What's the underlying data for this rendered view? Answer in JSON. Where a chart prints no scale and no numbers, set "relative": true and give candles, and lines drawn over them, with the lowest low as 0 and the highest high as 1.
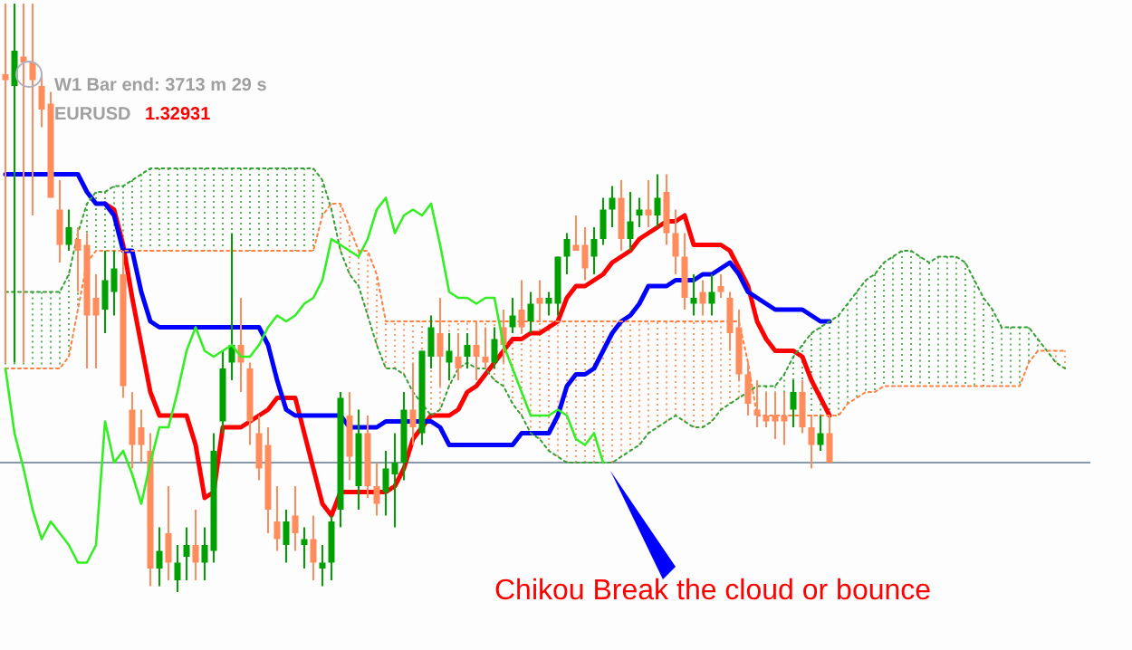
{
  "chart_data": {
    "type": "candlestick",
    "relative": true,
    "categories": [
      null,
      null,
      null,
      null,
      null,
      null,
      null,
      null,
      null,
      null,
      null,
      null,
      null,
      null,
      null,
      null,
      null,
      null,
      null,
      null,
      null,
      null,
      null,
      null,
      null,
      null,
      null,
      null,
      null,
      null,
      null,
      null,
      null,
      null,
      null,
      null,
      null,
      null,
      null,
      null,
      null,
      null,
      null,
      null,
      null,
      null,
      null,
      null,
      null,
      null,
      null,
      null,
      null,
      null,
      null,
      null,
      null,
      null,
      null,
      null,
      null,
      null,
      null,
      null,
      null,
      null,
      null,
      null,
      null,
      null,
      null,
      null,
      null,
      null,
      null,
      null,
      null,
      null,
      null,
      null,
      null,
      null,
      null,
      null,
      null,
      null,
      null,
      null,
      null,
      null,
      null,
      null,
      null,
      null,
      null,
      null,
      null,
      null,
      null,
      null,
      null,
      null,
      null,
      null,
      null,
      null,
      null,
      null,
      null,
      null,
      null,
      null,
      null,
      null,
      null,
      null,
      null,
      null
    ],
    "colors": [
      "#ff8c5a",
      "#00a000",
      "#ff8c5a",
      "#ff8c5a",
      "#ff8c5a",
      "#ff8c5a",
      "#ff8c5a",
      "#00a000",
      "#ff8c5a",
      "#ff8c5a",
      "#ff8c5a",
      "#00a000",
      "#00a000",
      "#ff8c5a",
      "#ff8c5a",
      "#ff8c5a",
      "#ff8c5a",
      "#00a000",
      "#ff8c5a",
      "#00a000",
      "#00a000",
      "#ff8c5a",
      "#00a000",
      "#00a000",
      "#00a000",
      "#00a000",
      "#ff8c5a",
      "#ff8c5a",
      "#ff8c5a",
      "#ff8c5a",
      "#ff8c5a",
      "#00a000",
      "#ff8c5a",
      "#00a000",
      "#ff8c5a",
      "#00a000",
      "#00a000",
      "#00a000",
      "#ff8c5a",
      "#00a000",
      "#ff8c5a",
      "#ff8c5a",
      "#00a000",
      "#00a000",
      "#00a000",
      "#ff8c5a",
      "#00a000",
      "#00a000",
      "#ff8c5a",
      "#00a000",
      "#ff8c5a",
      "#00a000",
      "#ff8c5a",
      "#ff8c5a",
      "#00a000",
      "#ff8c5a",
      "#00a000",
      "#ff8c5a",
      "#00a000",
      "#ff8c5a",
      "#00a000",
      "#00a000",
      "#00a000",
      "#ff8c5a",
      "#ff8c5a",
      "#00a000",
      "#00a000",
      "#00a000",
      "#ff8c5a",
      "#00a000",
      "#00a000",
      "#ff8c5a",
      "#00a000",
      "#ff8c5a",
      "#ff8c5a",
      "#ff8c5a",
      "#00a000",
      "#ff8c5a",
      "#00a000",
      "#ff8c5a",
      "#ff8c5a",
      "#ff8c5a",
      "#ff8c5a",
      "#ff8c5a",
      "#ff8c5a",
      "#ff8c5a",
      "#ff8c5a",
      "#00a000",
      "#ff8c5a",
      "#ff8c5a",
      "#00a000",
      "#ff8c5a",
      null,
      null,
      null,
      null,
      null,
      null,
      null,
      null,
      null,
      null,
      null,
      null,
      null,
      null,
      null,
      null,
      null,
      null,
      null,
      null,
      null,
      null,
      null,
      null,
      null,
      null
    ],
    "ohlc": [
      [
        0.88,
        1.0,
        0.39,
        0.87
      ],
      [
        0.86,
        1.0,
        0.39,
        0.92
      ],
      [
        0.91,
        1.0,
        0.39,
        0.9
      ],
      [
        0.9,
        1.0,
        0.64,
        0.87
      ],
      [
        0.86,
        0.88,
        0.79,
        0.82
      ],
      [
        0.83,
        0.85,
        0.67,
        0.67
      ],
      [
        0.65,
        0.7,
        0.56,
        0.59
      ],
      [
        0.59,
        0.65,
        0.58,
        0.62
      ],
      [
        0.6,
        0.62,
        0.51,
        0.58
      ],
      [
        0.59,
        0.61,
        0.38,
        0.47
      ],
      [
        0.5,
        0.54,
        0.38,
        0.47
      ],
      [
        0.48,
        0.58,
        0.44,
        0.53
      ],
      [
        0.51,
        0.58,
        0.47,
        0.55
      ],
      [
        0.54,
        0.58,
        0.33,
        0.35
      ],
      [
        0.31,
        0.34,
        0.21,
        0.25
      ],
      [
        0.28,
        0.31,
        0.22,
        0.25
      ],
      [
        0.24,
        0.27,
        0.01,
        0.04
      ],
      [
        0.04,
        0.11,
        0.01,
        0.07
      ],
      [
        0.1,
        0.18,
        0.02,
        0.05
      ],
      [
        0.02,
        0.08,
        0.0,
        0.05
      ],
      [
        0.06,
        0.11,
        0.02,
        0.08
      ],
      [
        0.08,
        0.14,
        0.02,
        0.05
      ],
      [
        0.05,
        0.11,
        0.02,
        0.08
      ],
      [
        0.07,
        0.27,
        0.05,
        0.24
      ],
      [
        0.29,
        0.41,
        0.27,
        0.38
      ],
      [
        0.39,
        0.61,
        0.36,
        0.42
      ],
      [
        0.42,
        0.5,
        0.34,
        0.39
      ],
      [
        0.38,
        0.39,
        0.25,
        0.29
      ],
      [
        0.27,
        0.3,
        0.19,
        0.21
      ],
      [
        0.25,
        0.28,
        0.1,
        0.14
      ],
      [
        0.12,
        0.18,
        0.07,
        0.09
      ],
      [
        0.08,
        0.14,
        0.05,
        0.12
      ],
      [
        0.13,
        0.18,
        0.07,
        0.1
      ],
      [
        0.08,
        0.11,
        0.04,
        0.09
      ],
      [
        0.09,
        0.13,
        0.02,
        0.05
      ],
      [
        0.04,
        0.08,
        0.01,
        0.05
      ],
      [
        0.05,
        0.13,
        0.02,
        0.12
      ],
      [
        0.14,
        0.34,
        0.11,
        0.33
      ],
      [
        0.3,
        0.34,
        0.19,
        0.23
      ],
      [
        0.18,
        0.31,
        0.14,
        0.27
      ],
      [
        0.27,
        0.3,
        0.16,
        0.18
      ],
      [
        0.18,
        0.22,
        0.13,
        0.15
      ],
      [
        0.17,
        0.24,
        0.13,
        0.21
      ],
      [
        0.2,
        0.27,
        0.11,
        0.22
      ],
      [
        0.22,
        0.34,
        0.19,
        0.31
      ],
      [
        0.31,
        0.39,
        0.25,
        0.28
      ],
      [
        0.27,
        0.41,
        0.25,
        0.41
      ],
      [
        0.4,
        0.47,
        0.38,
        0.45
      ],
      [
        0.44,
        0.5,
        0.35,
        0.4
      ],
      [
        0.39,
        0.44,
        0.36,
        0.41
      ],
      [
        0.4,
        0.44,
        0.36,
        0.38
      ],
      [
        0.4,
        0.44,
        0.38,
        0.42
      ],
      [
        0.42,
        0.46,
        0.36,
        0.4
      ],
      [
        0.4,
        0.45,
        0.38,
        0.39
      ],
      [
        0.39,
        0.45,
        0.38,
        0.43
      ],
      [
        0.45,
        0.48,
        0.39,
        0.42
      ],
      [
        0.45,
        0.5,
        0.44,
        0.47
      ],
      [
        0.48,
        0.53,
        0.44,
        0.45
      ],
      [
        0.46,
        0.51,
        0.44,
        0.49
      ],
      [
        0.5,
        0.53,
        0.46,
        0.49
      ],
      [
        0.49,
        0.51,
        0.47,
        0.5
      ],
      [
        0.49,
        0.57,
        0.47,
        0.57
      ],
      [
        0.57,
        0.61,
        0.54,
        0.6
      ],
      [
        0.59,
        0.64,
        0.58,
        0.58
      ],
      [
        0.59,
        0.62,
        0.53,
        0.55
      ],
      [
        0.57,
        0.62,
        0.54,
        0.6
      ],
      [
        0.6,
        0.67,
        0.59,
        0.65
      ],
      [
        0.65,
        0.69,
        0.62,
        0.67
      ],
      [
        0.67,
        0.7,
        0.58,
        0.6
      ],
      [
        0.6,
        0.68,
        0.58,
        0.63
      ],
      [
        0.64,
        0.67,
        0.62,
        0.65
      ],
      [
        0.65,
        0.7,
        0.62,
        0.64
      ],
      [
        0.64,
        0.71,
        0.62,
        0.67
      ],
      [
        0.68,
        0.71,
        0.59,
        0.61
      ],
      [
        0.61,
        0.65,
        0.54,
        0.57
      ],
      [
        0.57,
        0.61,
        0.48,
        0.5
      ],
      [
        0.49,
        0.54,
        0.47,
        0.5
      ],
      [
        0.51,
        0.53,
        0.47,
        0.49
      ],
      [
        0.49,
        0.54,
        0.47,
        0.51
      ],
      [
        0.52,
        0.54,
        0.5,
        0.51
      ],
      [
        0.5,
        0.51,
        0.41,
        0.44
      ],
      [
        0.45,
        0.48,
        0.36,
        0.37
      ],
      [
        0.37,
        0.39,
        0.3,
        0.32
      ],
      [
        0.31,
        0.36,
        0.28,
        0.3
      ],
      [
        0.3,
        0.34,
        0.28,
        0.29
      ],
      [
        0.3,
        0.34,
        0.26,
        0.29
      ],
      [
        0.3,
        0.34,
        0.25,
        0.29
      ],
      [
        0.31,
        0.36,
        0.28,
        0.34
      ],
      [
        0.34,
        0.36,
        0.27,
        0.28
      ],
      [
        0.28,
        0.3,
        0.21,
        0.25
      ],
      [
        0.25,
        0.3,
        0.24,
        0.27
      ],
      [
        0.27,
        0.3,
        0.22,
        0.22
      ],
      null,
      null,
      null,
      null,
      null,
      null,
      null,
      null,
      null,
      null,
      null,
      null,
      null,
      null,
      null,
      null,
      null,
      null,
      null,
      null,
      null,
      null,
      null,
      null,
      null,
      null
    ],
    "series": [
      {
        "type": "line",
        "color": "#ff0000",
        "line_style": "solid",
        "values": [
          null,
          null,
          null,
          null,
          null,
          null,
          null,
          null,
          null,
          null,
          null,
          0.66,
          0.65,
          0.59,
          0.5,
          0.42,
          0.34,
          0.3,
          0.3,
          0.3,
          0.3,
          0.25,
          0.16,
          0.17,
          0.28,
          0.28,
          0.28,
          0.29,
          0.3,
          0.31,
          0.33,
          0.33,
          0.33,
          0.27,
          0.21,
          0.15,
          0.13,
          0.17,
          0.17,
          0.17,
          0.17,
          0.17,
          0.17,
          0.18,
          0.21,
          0.26,
          0.28,
          0.3,
          0.3,
          0.3,
          0.31,
          0.34,
          0.35,
          0.37,
          0.39,
          0.41,
          0.43,
          0.43,
          0.44,
          0.44,
          0.45,
          0.46,
          0.5,
          0.52,
          0.52,
          0.53,
          0.54,
          0.56,
          0.57,
          0.58,
          0.6,
          0.61,
          0.62,
          0.63,
          0.63,
          0.64,
          0.59,
          0.59,
          0.59,
          0.59,
          0.58,
          0.55,
          0.52,
          0.46,
          0.43,
          0.41,
          0.41,
          0.41,
          0.4,
          0.36,
          0.33,
          0.3,
          null,
          null,
          null,
          null,
          null,
          null,
          null,
          null,
          null,
          null,
          null,
          null,
          null,
          null,
          null,
          null,
          null,
          null,
          null,
          null,
          null,
          null,
          null,
          null,
          null,
          null
        ]
      },
      {
        "type": "line",
        "color": "#0000ff",
        "line_style": "solid",
        "values": [
          0.71,
          0.71,
          0.71,
          0.71,
          0.71,
          0.71,
          0.71,
          0.71,
          0.71,
          0.68,
          0.66,
          0.66,
          0.64,
          0.58,
          0.58,
          0.51,
          0.46,
          0.45,
          0.45,
          0.45,
          0.45,
          0.45,
          0.45,
          0.45,
          0.45,
          0.45,
          0.45,
          0.45,
          0.45,
          0.42,
          0.36,
          0.31,
          0.3,
          0.3,
          0.3,
          0.3,
          0.3,
          0.3,
          0.28,
          0.28,
          0.28,
          0.28,
          0.29,
          0.29,
          0.29,
          0.29,
          0.29,
          0.29,
          0.28,
          0.25,
          0.25,
          0.25,
          0.25,
          0.25,
          0.25,
          0.25,
          0.25,
          0.27,
          0.27,
          0.27,
          0.27,
          0.3,
          0.35,
          0.37,
          0.37,
          0.38,
          0.41,
          0.44,
          0.46,
          0.47,
          0.49,
          0.52,
          0.52,
          0.52,
          0.53,
          0.53,
          0.53,
          0.54,
          0.54,
          0.55,
          0.56,
          0.54,
          0.51,
          0.5,
          0.49,
          0.48,
          0.48,
          0.48,
          0.48,
          0.47,
          0.46,
          0.46,
          null,
          null,
          null,
          null,
          null,
          null,
          null,
          null,
          null,
          null,
          null,
          null,
          null,
          null,
          null,
          null,
          null,
          null,
          null,
          null,
          null,
          null,
          null,
          null,
          null,
          null
        ]
      },
      {
        "type": "line",
        "color": "#33ee22",
        "line_style": "solid",
        "values": [
          0.38,
          0.27,
          0.21,
          0.14,
          0.09,
          0.12,
          0.1,
          0.08,
          0.05,
          0.05,
          0.08,
          0.29,
          0.22,
          0.24,
          0.2,
          0.15,
          0.22,
          0.28,
          0.28,
          0.34,
          0.41,
          0.45,
          0.41,
          0.4,
          0.41,
          0.42,
          0.4,
          0.4,
          0.42,
          0.45,
          0.47,
          0.46,
          0.47,
          0.49,
          0.5,
          0.53,
          0.6,
          0.59,
          0.58,
          0.57,
          0.6,
          0.65,
          0.67,
          0.61,
          0.64,
          0.65,
          0.64,
          0.66,
          0.59,
          0.51,
          0.5,
          0.5,
          0.49,
          0.5,
          0.5,
          0.42,
          0.38,
          0.34,
          0.3,
          0.3,
          0.3,
          0.31,
          0.3,
          0.26,
          0.25,
          0.27,
          0.22,
          null,
          null,
          null,
          null,
          null,
          null,
          null,
          null,
          null,
          null,
          null,
          null,
          null,
          null,
          null,
          null,
          null,
          null,
          null,
          null,
          null,
          null,
          null,
          null,
          null,
          null,
          null,
          null,
          null,
          null,
          null,
          null,
          null,
          null,
          null,
          null,
          null,
          null,
          null,
          null,
          null,
          null,
          null,
          null,
          null,
          null,
          null,
          null,
          null,
          null,
          null
        ]
      },
      {
        "type": "line",
        "color": "#33a033",
        "line_style": "dotted",
        "values": [
          0.51,
          0.51,
          0.51,
          0.51,
          0.51,
          0.51,
          0.51,
          0.54,
          0.61,
          0.66,
          0.68,
          0.68,
          0.69,
          0.69,
          0.7,
          0.71,
          0.72,
          0.72,
          0.72,
          0.72,
          0.72,
          0.72,
          0.72,
          0.72,
          0.72,
          0.72,
          0.72,
          0.72,
          0.72,
          0.72,
          0.72,
          0.72,
          0.72,
          0.72,
          0.72,
          0.7,
          0.65,
          0.58,
          0.54,
          0.52,
          0.47,
          0.42,
          0.38,
          0.38,
          0.37,
          0.34,
          0.32,
          0.3,
          0.31,
          0.35,
          0.38,
          0.39,
          0.38,
          0.38,
          0.36,
          0.35,
          0.32,
          0.3,
          0.27,
          0.26,
          0.24,
          0.23,
          0.22,
          0.22,
          0.22,
          0.22,
          0.22,
          0.22,
          0.23,
          0.24,
          0.25,
          0.27,
          0.28,
          0.29,
          0.3,
          0.29,
          0.28,
          0.28,
          0.29,
          0.31,
          0.32,
          0.33,
          0.34,
          0.35,
          0.35,
          0.35,
          0.37,
          0.4,
          0.42,
          0.44,
          0.45,
          0.46,
          0.47,
          0.49,
          0.51,
          0.53,
          0.54,
          0.56,
          0.57,
          0.58,
          0.58,
          0.57,
          0.56,
          0.57,
          0.57,
          0.57,
          0.56,
          0.53,
          0.5,
          0.48,
          0.45,
          0.45,
          0.45,
          0.45,
          0.43,
          0.41,
          0.39,
          0.38
        ]
      },
      {
        "type": "line",
        "color": "#ff8040",
        "line_style": "dotted",
        "values": [
          0.38,
          0.38,
          0.38,
          0.38,
          0.38,
          0.38,
          0.38,
          0.4,
          0.48,
          0.56,
          0.58,
          0.58,
          0.58,
          0.58,
          0.58,
          0.58,
          0.58,
          0.58,
          0.58,
          0.58,
          0.58,
          0.58,
          0.58,
          0.58,
          0.58,
          0.58,
          0.58,
          0.58,
          0.58,
          0.58,
          0.58,
          0.58,
          0.58,
          0.58,
          0.58,
          0.64,
          0.66,
          0.66,
          0.62,
          0.58,
          0.58,
          0.54,
          0.46,
          0.46,
          0.46,
          0.46,
          0.46,
          0.46,
          0.46,
          0.46,
          0.46,
          0.46,
          0.46,
          0.46,
          0.46,
          0.46,
          0.46,
          0.46,
          0.46,
          0.46,
          0.46,
          0.46,
          0.46,
          0.46,
          0.46,
          0.46,
          0.46,
          0.46,
          0.46,
          0.46,
          0.46,
          0.46,
          0.46,
          0.46,
          0.46,
          0.46,
          0.46,
          0.46,
          0.46,
          0.46,
          0.46,
          0.46,
          0.39,
          0.3,
          0.3,
          0.3,
          0.3,
          0.3,
          0.3,
          0.3,
          0.3,
          0.3,
          0.3,
          0.32,
          0.33,
          0.34,
          0.34,
          0.35,
          0.35,
          0.35,
          0.35,
          0.35,
          0.35,
          0.35,
          0.35,
          0.35,
          0.35,
          0.35,
          0.35,
          0.35,
          0.35,
          0.35,
          0.35,
          0.39,
          0.41,
          0.41,
          0.41,
          0.41
        ]
      }
    ],
    "ref_lines": [
      {
        "axis": "y",
        "value": 0.22,
        "color": "#8899aa"
      }
    ],
    "annotations": [
      "W1 Bar end: 3713 m 29 s",
      "EURUSD",
      "1.32931",
      "Chikou Break the cloud or bounce"
    ]
  }
}
